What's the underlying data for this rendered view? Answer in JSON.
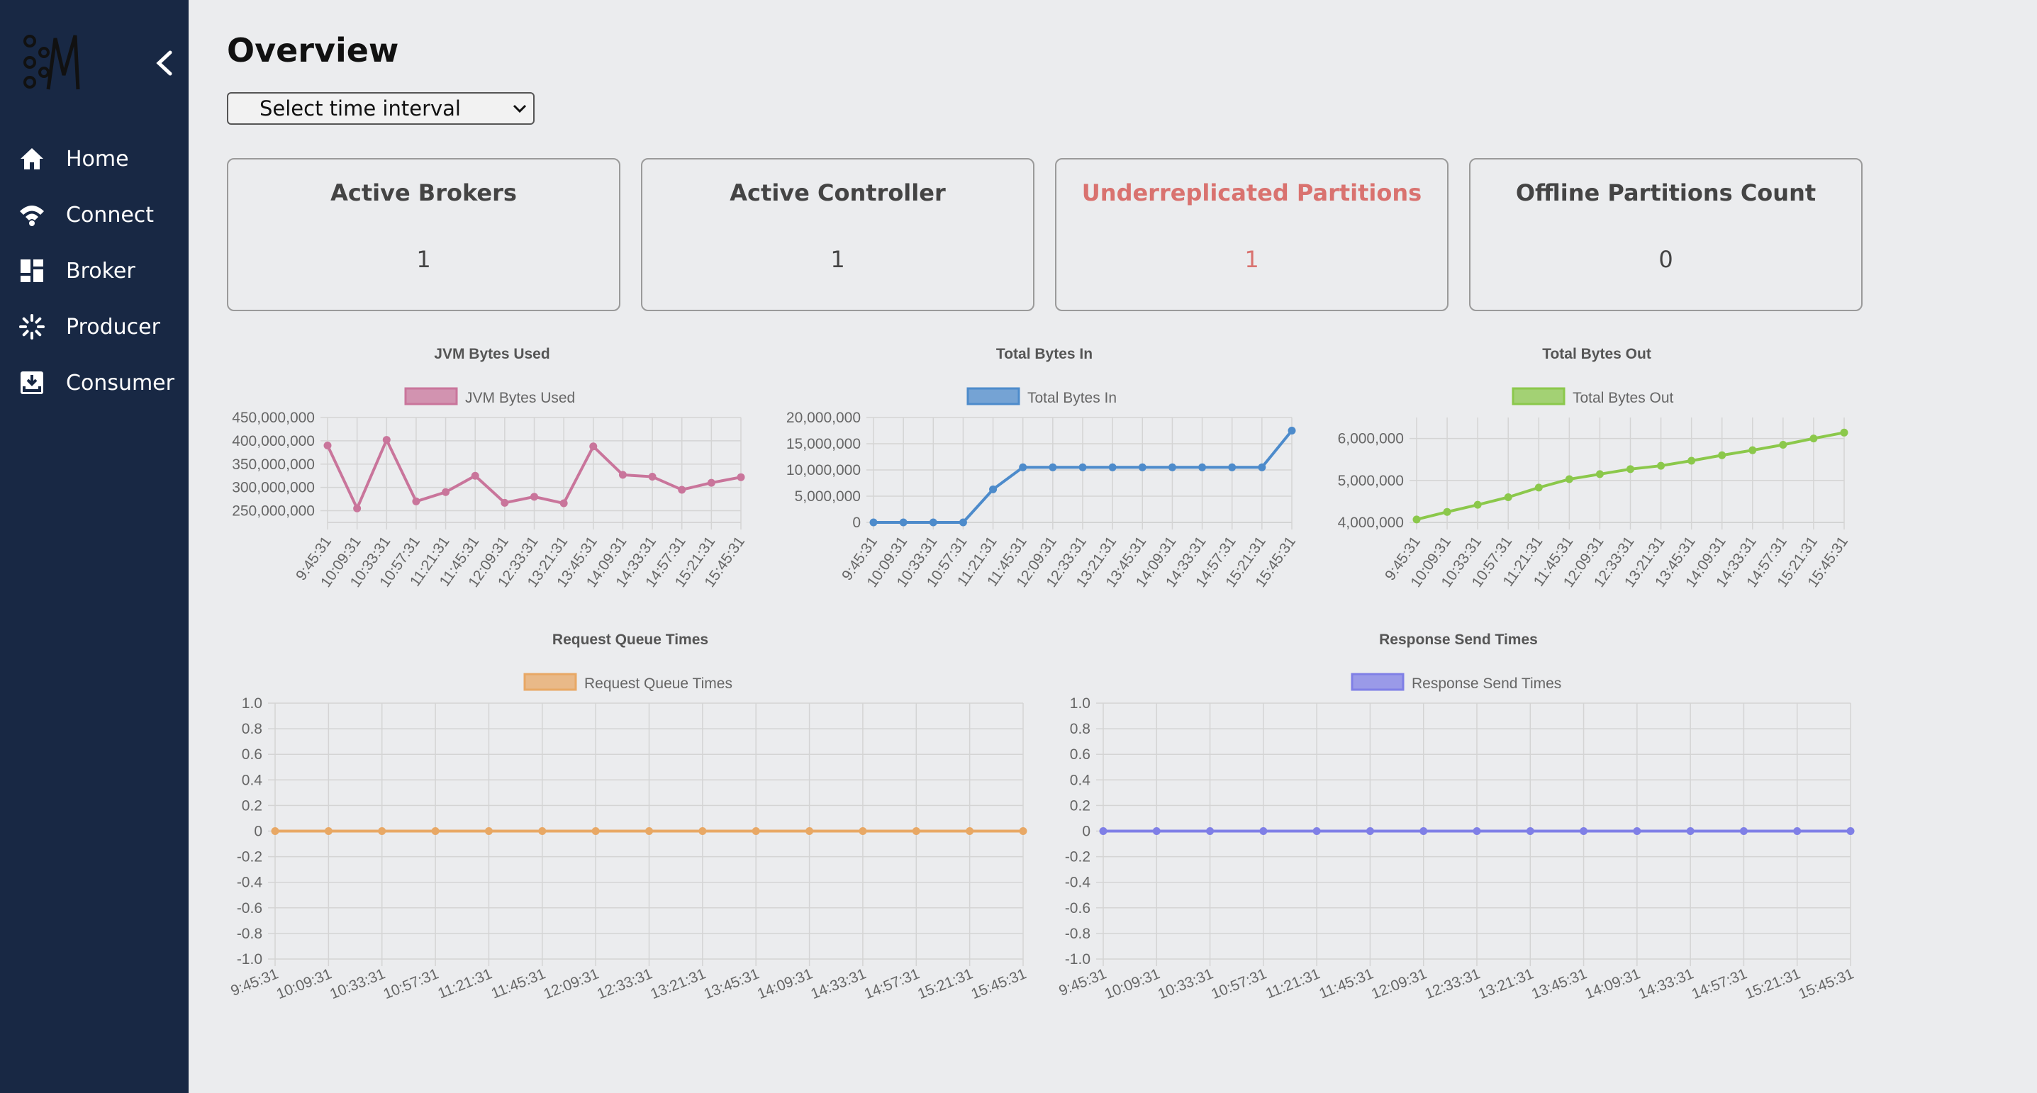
{
  "sidebar": {
    "logo_icon": "kafka-logo-icon",
    "collapse_icon": "chevron-left-icon",
    "items": [
      {
        "label": "Home",
        "icon": "home-icon"
      },
      {
        "label": "Connect",
        "icon": "wifi-icon"
      },
      {
        "label": "Broker",
        "icon": "dashboard-icon"
      },
      {
        "label": "Producer",
        "icon": "spinner-icon"
      },
      {
        "label": "Consumer",
        "icon": "download-icon"
      }
    ]
  },
  "header": {
    "title": "Overview",
    "interval_label": "Select time interval"
  },
  "cards": [
    {
      "title": "Active Brokers",
      "value": "1"
    },
    {
      "title": "Active Controller",
      "value": "1"
    },
    {
      "title": "Underreplicated Partitions",
      "value": "1",
      "color": "#d9726f"
    },
    {
      "title": "Offline Partitions Count",
      "value": "0"
    }
  ],
  "chart_data": [
    {
      "type": "line",
      "title": "JVM Bytes Used",
      "x": [
        "9:45:31",
        "10:09:31",
        "10:33:31",
        "10:57:31",
        "11:21:31",
        "11:45:31",
        "12:09:31",
        "12:33:31",
        "13:21:31",
        "13:45:31",
        "14:09:31",
        "14:33:31",
        "14:57:31",
        "15:21:31",
        "15:45:31"
      ],
      "series": [
        {
          "name": "JVM Bytes Used",
          "values": [
            390000000,
            255000000,
            402000000,
            270000000,
            290000000,
            325000000,
            267000000,
            280000000,
            266000000,
            388000000,
            327000000,
            323000000,
            295000000,
            310000000,
            322000000
          ],
          "color": "#c9759b"
        }
      ],
      "yticks": [
        "450,000,000",
        "400,000,000",
        "350,000,000",
        "300,000,000",
        "250,000,000"
      ],
      "ylim": [
        225000000,
        450000000
      ],
      "grid": true,
      "legend": "top"
    },
    {
      "type": "line",
      "title": "Total Bytes In",
      "x": [
        "9:45:31",
        "10:09:31",
        "10:33:31",
        "10:57:31",
        "11:21:31",
        "11:45:31",
        "12:09:31",
        "12:33:31",
        "13:21:31",
        "13:45:31",
        "14:09:31",
        "14:33:31",
        "14:57:31",
        "15:21:31",
        "15:45:31"
      ],
      "series": [
        {
          "name": "Total Bytes In",
          "values": [
            0,
            0,
            0,
            0,
            6300000,
            10500000,
            10500000,
            10500000,
            10500000,
            10500000,
            10500000,
            10500000,
            10500000,
            10500000,
            17500000
          ],
          "color": "#4d8bcb"
        }
      ],
      "yticks": [
        "20,000,000",
        "15,000,000",
        "10,000,000",
        "5,000,000",
        "0"
      ],
      "ylim": [
        0,
        20000000
      ],
      "grid": true,
      "legend": "top"
    },
    {
      "type": "line",
      "title": "Total Bytes Out",
      "x": [
        "9:45:31",
        "10:09:31",
        "10:33:31",
        "10:57:31",
        "11:21:31",
        "11:45:31",
        "12:09:31",
        "12:33:31",
        "13:21:31",
        "13:45:31",
        "14:09:31",
        "14:33:31",
        "14:57:31",
        "15:21:31",
        "15:45:31"
      ],
      "series": [
        {
          "name": "Total Bytes Out",
          "values": [
            4070000,
            4250000,
            4420000,
            4600000,
            4830000,
            5030000,
            5150000,
            5270000,
            5350000,
            5470000,
            5600000,
            5720000,
            5850000,
            6000000,
            6140000
          ],
          "color": "#8bc84b"
        }
      ],
      "yticks": [
        "6,000,000",
        "5,000,000",
        "4,000,000"
      ],
      "ylim": [
        4000000,
        6500000
      ],
      "grid": true,
      "legend": "top"
    },
    {
      "type": "line",
      "title": "Request Queue Times",
      "x": [
        "9:45:31",
        "10:09:31",
        "10:33:31",
        "10:57:31",
        "11:21:31",
        "11:45:31",
        "12:09:31",
        "12:33:31",
        "13:21:31",
        "13:45:31",
        "14:09:31",
        "14:33:31",
        "14:57:31",
        "15:21:31",
        "15:45:31"
      ],
      "series": [
        {
          "name": "Request Queue Times",
          "values": [
            0,
            0,
            0,
            0,
            0,
            0,
            0,
            0,
            0,
            0,
            0,
            0,
            0,
            0,
            0
          ],
          "color": "#e8a865"
        }
      ],
      "yticks": [
        "1.0",
        "0.8",
        "0.6",
        "0.4",
        "0.2",
        "0",
        "-0.2",
        "-0.4",
        "-0.6",
        "-0.8",
        "-1.0"
      ],
      "ylim": [
        -1,
        1
      ],
      "grid": true,
      "legend": "top"
    },
    {
      "type": "line",
      "title": "Response Send Times",
      "x": [
        "9:45:31",
        "10:09:31",
        "10:33:31",
        "10:57:31",
        "11:21:31",
        "11:45:31",
        "12:09:31",
        "12:33:31",
        "13:21:31",
        "13:45:31",
        "14:09:31",
        "14:33:31",
        "14:57:31",
        "15:21:31",
        "15:45:31"
      ],
      "series": [
        {
          "name": "Response Send Times",
          "values": [
            0,
            0,
            0,
            0,
            0,
            0,
            0,
            0,
            0,
            0,
            0,
            0,
            0,
            0,
            0
          ],
          "color": "#7f7fe6"
        }
      ],
      "yticks": [
        "1.0",
        "0.8",
        "0.6",
        "0.4",
        "0.2",
        "0",
        "-0.2",
        "-0.4",
        "-0.6",
        "-0.8",
        "-1.0"
      ],
      "ylim": [
        -1,
        1
      ],
      "grid": true,
      "legend": "top"
    }
  ]
}
